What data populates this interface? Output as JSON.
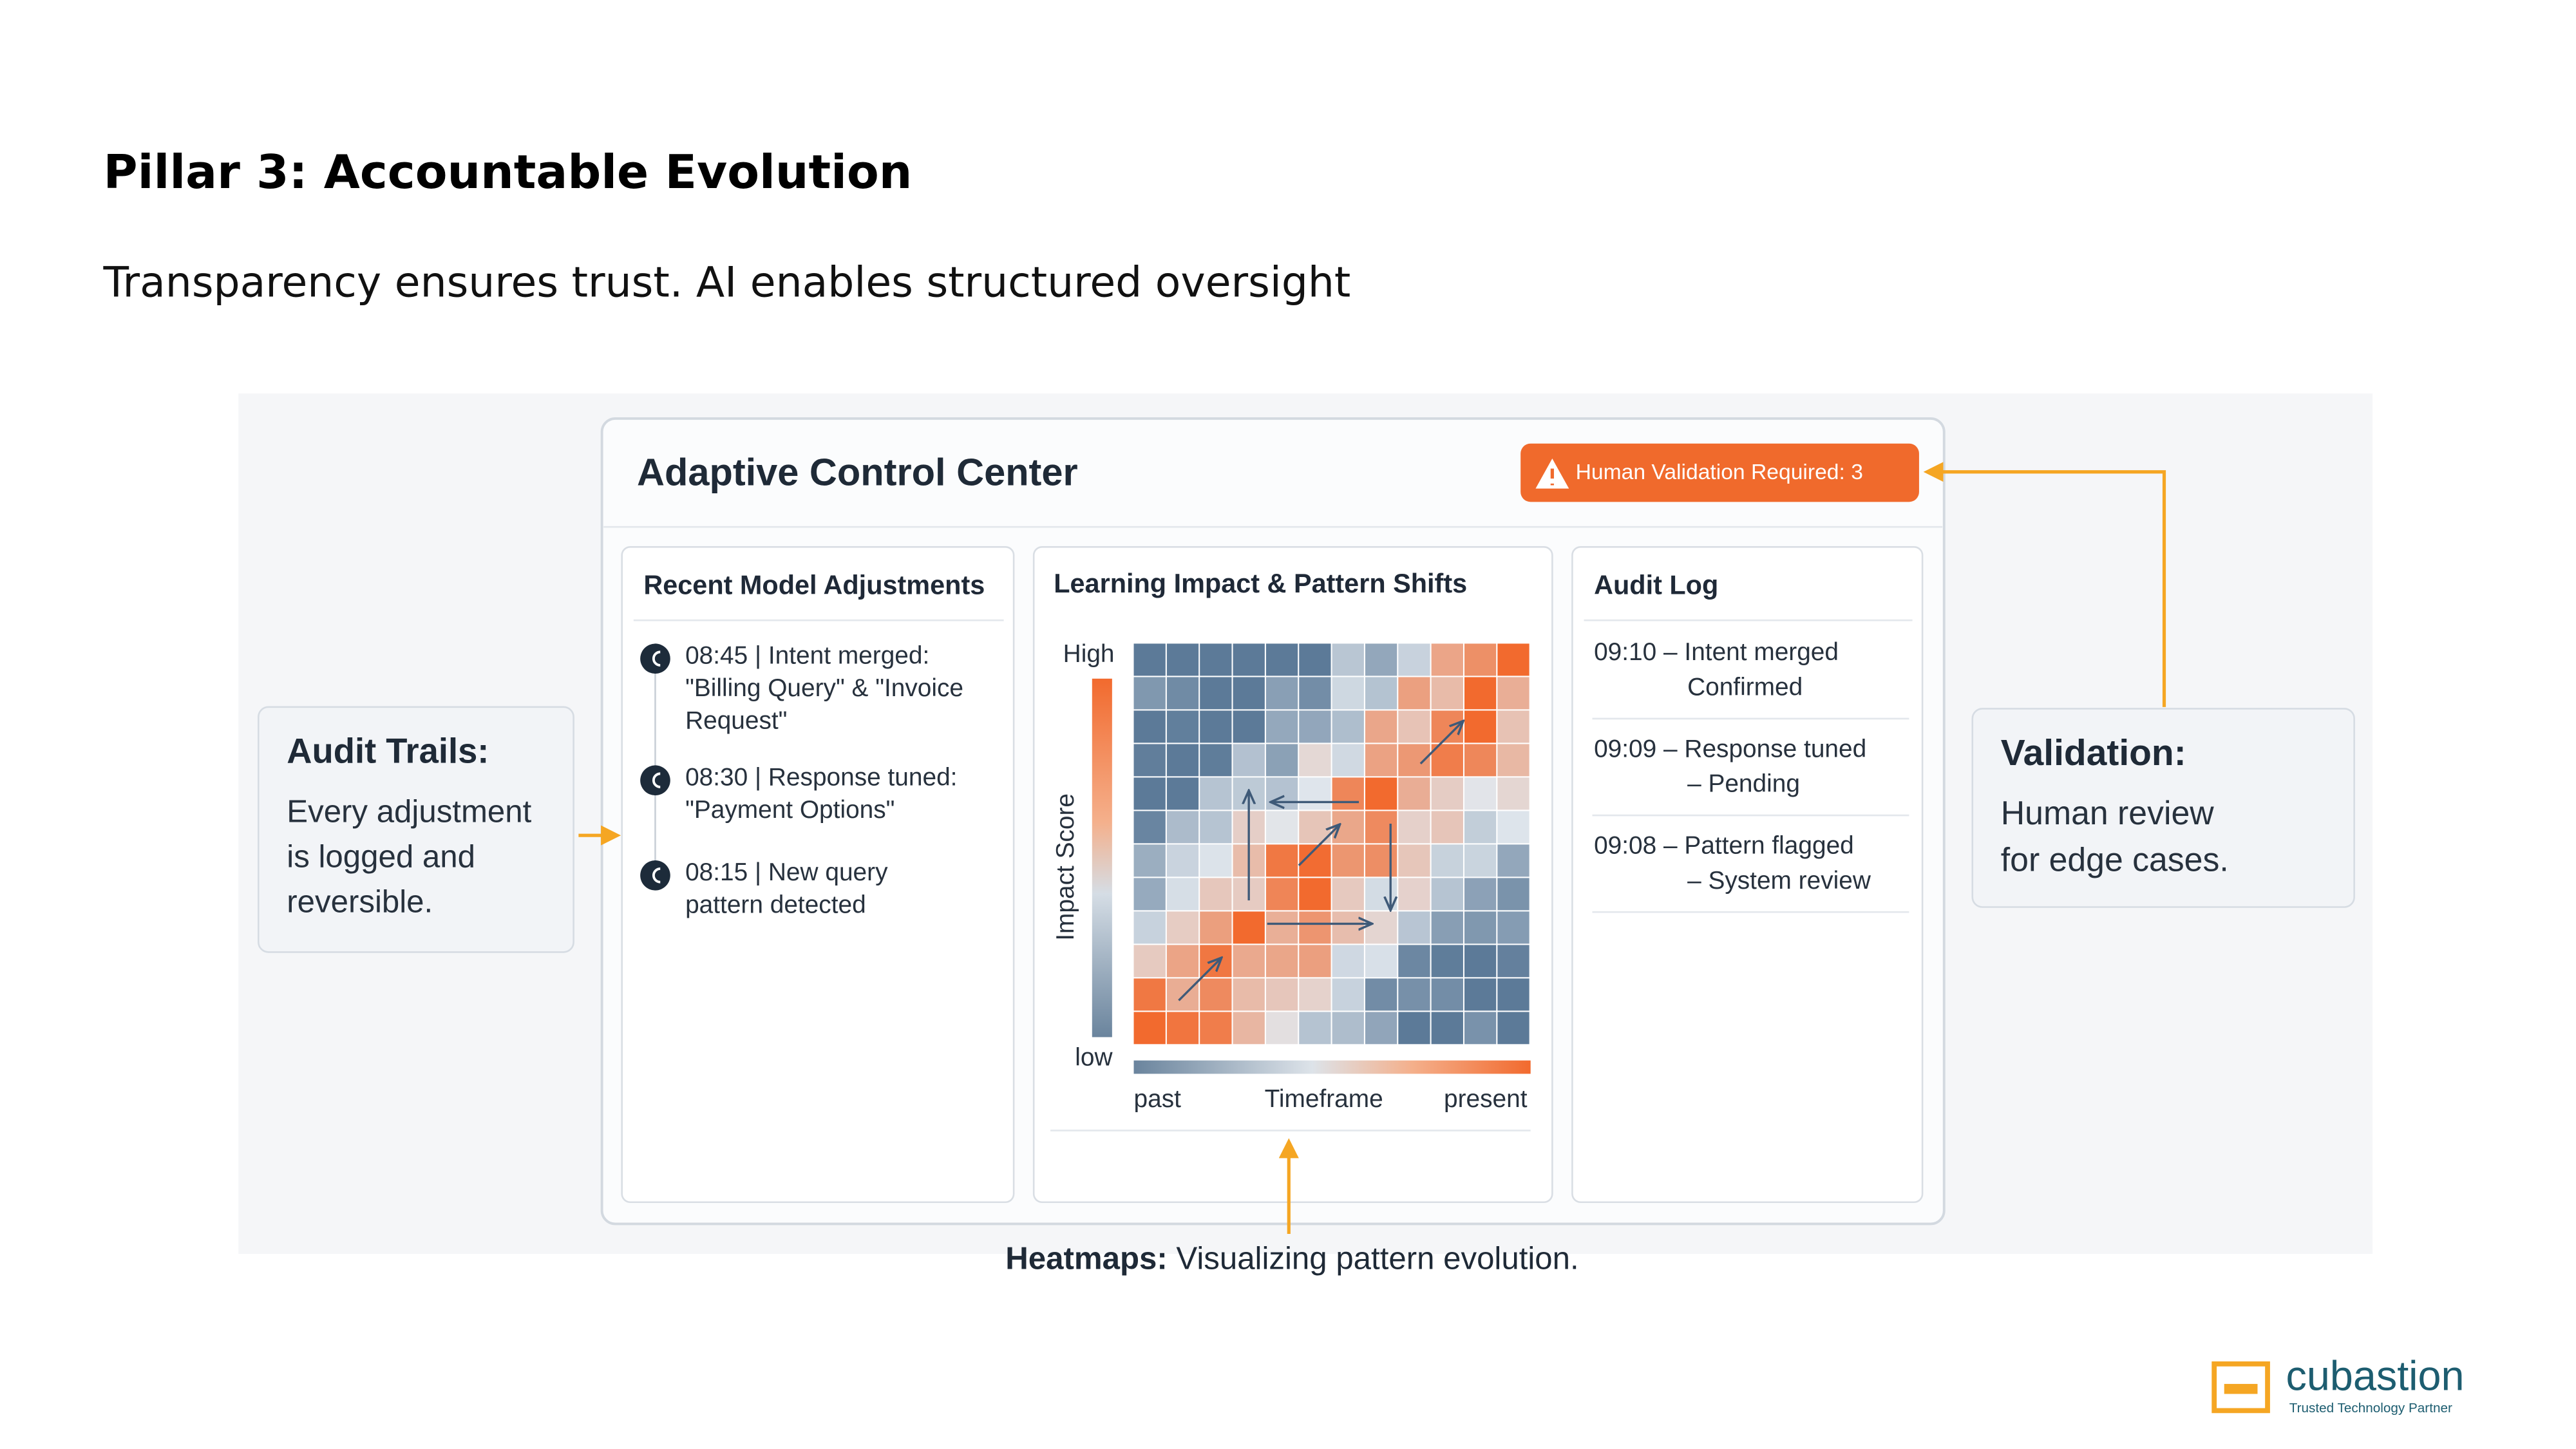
{
  "header": {
    "title": "Pillar 3: Accountable Evolution",
    "subtitle": "Transparency ensures trust. AI enables structured oversight"
  },
  "panel": {
    "title": "Adaptive Control Center",
    "badge": "Human Validation Required: 3"
  },
  "adjustments": {
    "title": "Recent Model Adjustments",
    "entries": [
      {
        "lines": [
          "08:45 | Intent merged:",
          "\"Billing Query\" & \"Invoice",
          "Request\""
        ]
      },
      {
        "lines": [
          "08:30 | Response tuned:",
          "\"Payment Options\""
        ]
      },
      {
        "lines": [
          "08:15 | New query",
          "pattern detected"
        ]
      }
    ]
  },
  "heatmap": {
    "title": "Learning Impact & Pattern Shifts",
    "y_label": "Impact Score",
    "y_high": "High",
    "y_low": "low",
    "x_label": "Timeframe",
    "x_start": "past",
    "x_end": "present"
  },
  "audit_log": {
    "title": "Audit Log",
    "entries": [
      {
        "lines": [
          "09:10 – Intent merged",
          "Confirmed"
        ]
      },
      {
        "lines": [
          "09:09 – Response tuned",
          "– Pending"
        ]
      },
      {
        "lines": [
          "09:08 – Pattern flagged",
          "– System review"
        ]
      }
    ]
  },
  "callouts": {
    "audit_trails": {
      "title": "Audit Trails:",
      "lines": [
        "Every adjustment",
        "is logged and",
        "reversible."
      ]
    },
    "validation": {
      "title": "Validation:",
      "lines": [
        "Human review",
        "for edge cases."
      ]
    },
    "heatmaps": {
      "title": "Heatmaps:",
      "text": "Visualizing pattern evolution."
    }
  },
  "logo": {
    "name": "cubastion",
    "tagline": "Trusted Technology Partner"
  }
}
